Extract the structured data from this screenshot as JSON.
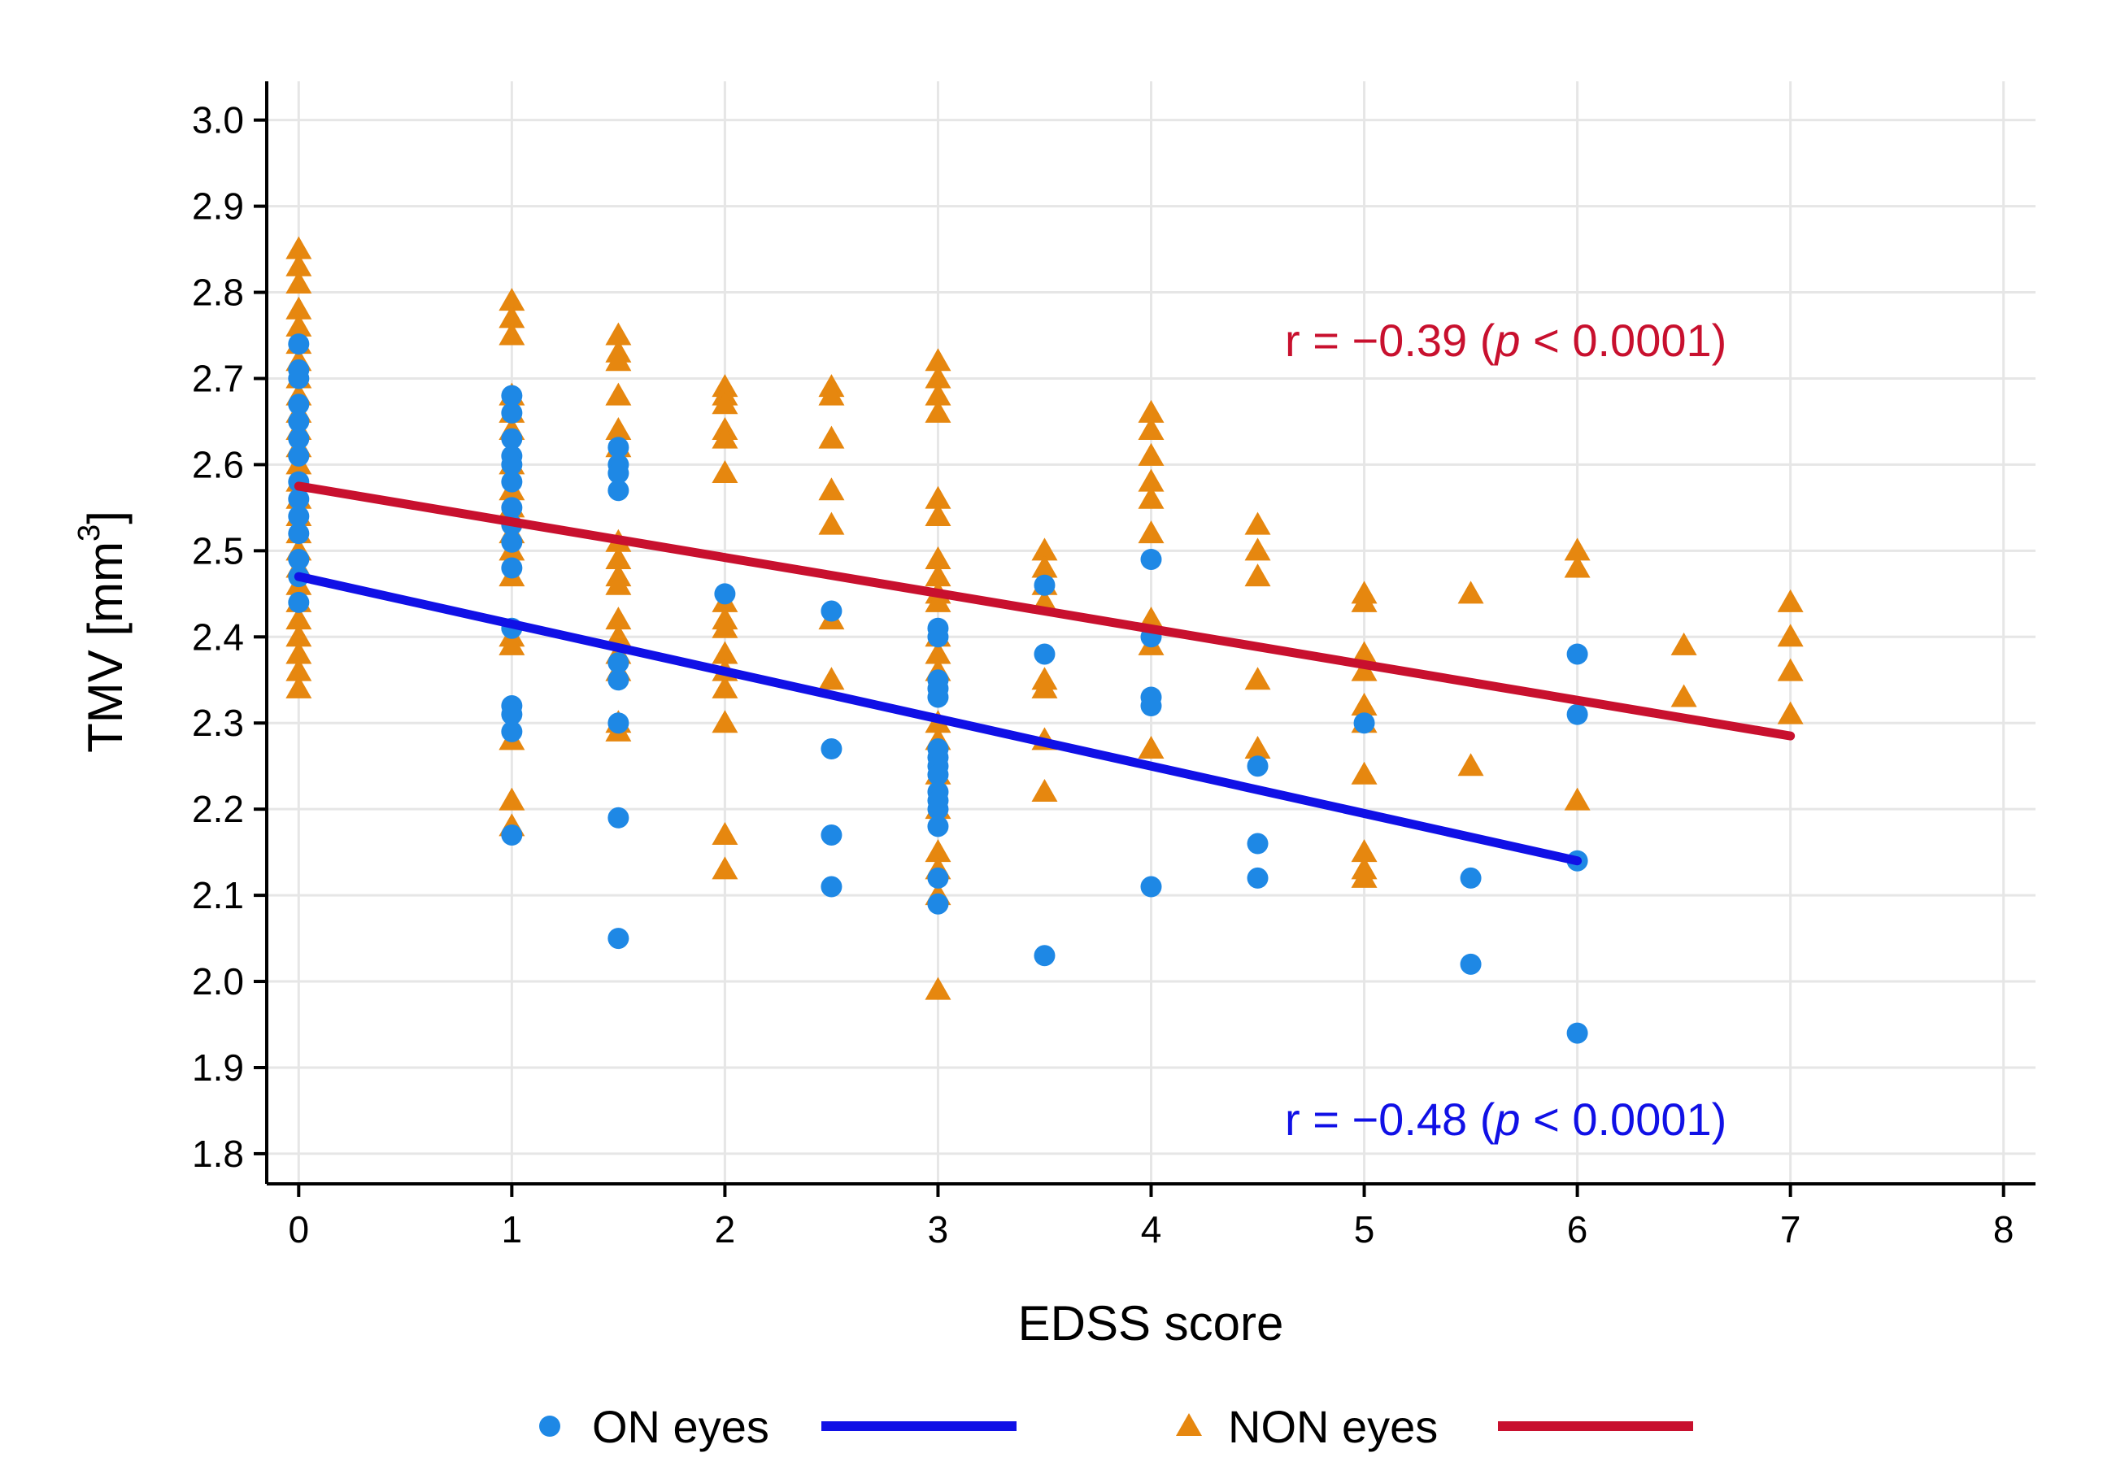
{
  "chart_data": {
    "type": "scatter",
    "xlabel": "EDSS score",
    "ylabel": "TMV [mm",
    "ylabel_superscript": "3",
    "ylabel_suffix": "]",
    "xlim": [
      -0.15,
      8.15
    ],
    "ylim": [
      1.765,
      3.045
    ],
    "xticks": [
      "0",
      "1",
      "2",
      "3",
      "4",
      "5",
      "6",
      "7",
      "8"
    ],
    "yticks": [
      "1.8",
      "1.9",
      "2.0",
      "2.1",
      "2.2",
      "2.3",
      "2.4",
      "2.5",
      "2.6",
      "2.7",
      "2.8",
      "2.9",
      "3.0"
    ],
    "grid": true,
    "legend_position": "bottom",
    "series": [
      {
        "name": "ON eyes",
        "marker": "circle",
        "color": "#1e88e5",
        "points": [
          [
            0,
            2.47
          ],
          [
            0,
            2.52
          ],
          [
            0,
            2.56
          ],
          [
            0,
            2.61
          ],
          [
            0,
            2.65
          ],
          [
            0,
            2.7
          ],
          [
            0,
            2.74
          ],
          [
            0,
            2.44
          ],
          [
            0,
            2.49
          ],
          [
            0,
            2.58
          ],
          [
            0,
            2.63
          ],
          [
            0,
            2.67
          ],
          [
            0,
            2.71
          ],
          [
            0,
            2.54
          ],
          [
            1,
            2.68
          ],
          [
            1,
            2.66
          ],
          [
            1,
            2.63
          ],
          [
            1,
            2.61
          ],
          [
            1,
            2.6
          ],
          [
            1,
            2.58
          ],
          [
            1,
            2.55
          ],
          [
            1,
            2.53
          ],
          [
            1,
            2.51
          ],
          [
            1,
            2.48
          ],
          [
            1,
            2.41
          ],
          [
            1,
            2.32
          ],
          [
            1,
            2.31
          ],
          [
            1,
            2.29
          ],
          [
            1,
            2.17
          ],
          [
            1.5,
            2.62
          ],
          [
            1.5,
            2.6
          ],
          [
            1.5,
            2.59
          ],
          [
            1.5,
            2.57
          ],
          [
            1.5,
            2.37
          ],
          [
            1.5,
            2.35
          ],
          [
            1.5,
            2.3
          ],
          [
            1.5,
            2.19
          ],
          [
            1.5,
            2.05
          ],
          [
            2,
            2.45
          ],
          [
            2.5,
            2.43
          ],
          [
            2.5,
            2.27
          ],
          [
            2.5,
            2.17
          ],
          [
            2.5,
            2.11
          ],
          [
            3,
            2.41
          ],
          [
            3,
            2.4
          ],
          [
            3,
            2.35
          ],
          [
            3,
            2.34
          ],
          [
            3,
            2.33
          ],
          [
            3,
            2.27
          ],
          [
            3,
            2.26
          ],
          [
            3,
            2.25
          ],
          [
            3,
            2.24
          ],
          [
            3,
            2.22
          ],
          [
            3,
            2.21
          ],
          [
            3,
            2.2
          ],
          [
            3,
            2.18
          ],
          [
            3,
            2.12
          ],
          [
            3,
            2.09
          ],
          [
            3.5,
            2.46
          ],
          [
            3.5,
            2.38
          ],
          [
            3.5,
            2.03
          ],
          [
            4,
            2.49
          ],
          [
            4,
            2.4
          ],
          [
            4,
            2.33
          ],
          [
            4,
            2.32
          ],
          [
            4,
            2.11
          ],
          [
            4.5,
            2.25
          ],
          [
            4.5,
            2.16
          ],
          [
            4.5,
            2.12
          ],
          [
            5,
            2.3
          ],
          [
            5.5,
            2.12
          ],
          [
            5.5,
            2.02
          ],
          [
            6,
            2.38
          ],
          [
            6,
            2.31
          ],
          [
            6,
            2.14
          ],
          [
            6,
            1.94
          ]
        ],
        "fit": {
          "x": [
            0,
            6
          ],
          "y": [
            2.47,
            2.14
          ]
        }
      },
      {
        "name": "NON eyes",
        "marker": "triangle",
        "color": "#e6870f",
        "points": [
          [
            0,
            2.85
          ],
          [
            0,
            2.83
          ],
          [
            0,
            2.81
          ],
          [
            0,
            2.78
          ],
          [
            0,
            2.76
          ],
          [
            0,
            2.74
          ],
          [
            0,
            2.72
          ],
          [
            0,
            2.7
          ],
          [
            0,
            2.68
          ],
          [
            0,
            2.66
          ],
          [
            0,
            2.64
          ],
          [
            0,
            2.62
          ],
          [
            0,
            2.6
          ],
          [
            0,
            2.58
          ],
          [
            0,
            2.56
          ],
          [
            0,
            2.54
          ],
          [
            0,
            2.52
          ],
          [
            0,
            2.5
          ],
          [
            0,
            2.48
          ],
          [
            0,
            2.46
          ],
          [
            0,
            2.44
          ],
          [
            0,
            2.42
          ],
          [
            0,
            2.4
          ],
          [
            0,
            2.38
          ],
          [
            0,
            2.36
          ],
          [
            0,
            2.34
          ],
          [
            1,
            2.79
          ],
          [
            1,
            2.77
          ],
          [
            1,
            2.75
          ],
          [
            1,
            2.68
          ],
          [
            1,
            2.66
          ],
          [
            1,
            2.64
          ],
          [
            1,
            2.6
          ],
          [
            1,
            2.57
          ],
          [
            1,
            2.55
          ],
          [
            1,
            2.52
          ],
          [
            1,
            2.5
          ],
          [
            1,
            2.47
          ],
          [
            1,
            2.4
          ],
          [
            1,
            2.39
          ],
          [
            1,
            2.28
          ],
          [
            1,
            2.21
          ],
          [
            1,
            2.18
          ],
          [
            1.5,
            2.75
          ],
          [
            1.5,
            2.73
          ],
          [
            1.5,
            2.72
          ],
          [
            1.5,
            2.68
          ],
          [
            1.5,
            2.64
          ],
          [
            1.5,
            2.62
          ],
          [
            1.5,
            2.51
          ],
          [
            1.5,
            2.49
          ],
          [
            1.5,
            2.47
          ],
          [
            1.5,
            2.46
          ],
          [
            1.5,
            2.42
          ],
          [
            1.5,
            2.4
          ],
          [
            1.5,
            2.38
          ],
          [
            1.5,
            2.36
          ],
          [
            1.5,
            2.3
          ],
          [
            1.5,
            2.29
          ],
          [
            2,
            2.69
          ],
          [
            2,
            2.68
          ],
          [
            2,
            2.67
          ],
          [
            2,
            2.64
          ],
          [
            2,
            2.63
          ],
          [
            2,
            2.59
          ],
          [
            2,
            2.44
          ],
          [
            2,
            2.42
          ],
          [
            2,
            2.41
          ],
          [
            2,
            2.38
          ],
          [
            2,
            2.36
          ],
          [
            2,
            2.34
          ],
          [
            2,
            2.3
          ],
          [
            2,
            2.17
          ],
          [
            2,
            2.13
          ],
          [
            2.5,
            2.69
          ],
          [
            2.5,
            2.68
          ],
          [
            2.5,
            2.63
          ],
          [
            2.5,
            2.57
          ],
          [
            2.5,
            2.53
          ],
          [
            2.5,
            2.42
          ],
          [
            2.5,
            2.35
          ],
          [
            3,
            2.72
          ],
          [
            3,
            2.7
          ],
          [
            3,
            2.68
          ],
          [
            3,
            2.66
          ],
          [
            3,
            2.56
          ],
          [
            3,
            2.54
          ],
          [
            3,
            2.49
          ],
          [
            3,
            2.47
          ],
          [
            3,
            2.45
          ],
          [
            3,
            2.44
          ],
          [
            3,
            2.4
          ],
          [
            3,
            2.38
          ],
          [
            3,
            2.36
          ],
          [
            3,
            2.3
          ],
          [
            3,
            2.28
          ],
          [
            3,
            2.24
          ],
          [
            3,
            2.2
          ],
          [
            3,
            2.15
          ],
          [
            3,
            2.13
          ],
          [
            3,
            2.1
          ],
          [
            3,
            1.99
          ],
          [
            3.5,
            2.5
          ],
          [
            3.5,
            2.48
          ],
          [
            3.5,
            2.46
          ],
          [
            3.5,
            2.44
          ],
          [
            3.5,
            2.35
          ],
          [
            3.5,
            2.34
          ],
          [
            3.5,
            2.28
          ],
          [
            3.5,
            2.22
          ],
          [
            4,
            2.66
          ],
          [
            4,
            2.64
          ],
          [
            4,
            2.61
          ],
          [
            4,
            2.58
          ],
          [
            4,
            2.56
          ],
          [
            4,
            2.52
          ],
          [
            4,
            2.42
          ],
          [
            4,
            2.39
          ],
          [
            4,
            2.27
          ],
          [
            4.5,
            2.53
          ],
          [
            4.5,
            2.5
          ],
          [
            4.5,
            2.47
          ],
          [
            4.5,
            2.35
          ],
          [
            4.5,
            2.27
          ],
          [
            5,
            2.45
          ],
          [
            5,
            2.44
          ],
          [
            5,
            2.38
          ],
          [
            5,
            2.36
          ],
          [
            5,
            2.32
          ],
          [
            5,
            2.3
          ],
          [
            5,
            2.24
          ],
          [
            5,
            2.15
          ],
          [
            5,
            2.13
          ],
          [
            5,
            2.12
          ],
          [
            5.5,
            2.45
          ],
          [
            5.5,
            2.25
          ],
          [
            6,
            2.5
          ],
          [
            6,
            2.48
          ],
          [
            6,
            2.21
          ],
          [
            6.5,
            2.39
          ],
          [
            6.5,
            2.33
          ],
          [
            7,
            2.44
          ],
          [
            7,
            2.4
          ],
          [
            7,
            2.36
          ],
          [
            7,
            2.31
          ]
        ],
        "fit": {
          "x": [
            0,
            7
          ],
          "y": [
            2.575,
            2.285
          ]
        }
      }
    ],
    "annotations": [
      {
        "label": "r = −0.39 (",
        "italic": "p",
        "suffix": " < 0.0001)",
        "color": "#c8102e"
      },
      {
        "label": "r = −0.48 (",
        "italic": "p",
        "suffix": " < 0.0001)",
        "color": "#1010e6"
      }
    ],
    "fit_colors": {
      "ON eyes": "#1010e6",
      "NON eyes": "#c8102e"
    }
  }
}
